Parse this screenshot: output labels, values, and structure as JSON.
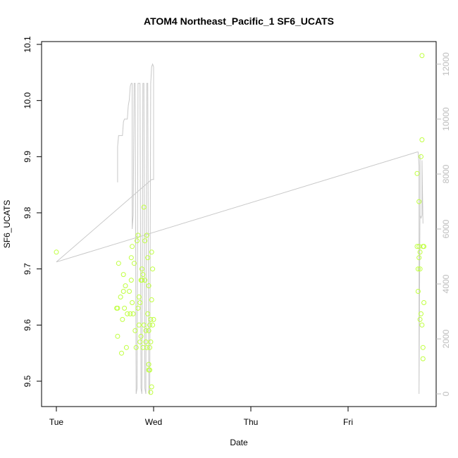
{
  "chart_data": {
    "type": "scatter",
    "title": "ATOM4 Northeast_Pacific_1 SF6_UCATS",
    "xlabel": "Date",
    "ylabel": "SF6_UCATS",
    "x_ticks": [
      "Tue",
      "Wed",
      "Thu",
      "Fri"
    ],
    "x_range_days": [
      0,
      3.88
    ],
    "ylim": [
      9.485,
      10.1
    ],
    "y_ticks": [
      "9.5",
      "9.6",
      "9.7",
      "9.8",
      "9.9",
      "10.0",
      "10.1"
    ],
    "y_tick_values": [
      9.5,
      9.6,
      9.7,
      9.8,
      9.9,
      10.0,
      10.1
    ],
    "y2_ticks": [
      "0",
      "2000",
      "4000",
      "6000",
      "8000",
      "10000",
      "12000"
    ],
    "y2_tick_values": [
      0,
      2000,
      4000,
      6000,
      8000,
      10000,
      12000
    ],
    "y2lim": [
      -200,
      12800
    ],
    "grid": false,
    "colors": {
      "points": "#bfff3f",
      "altitude_line": "#c8c8c8",
      "axis": "#000000",
      "right_axis": "#bdbdbd"
    },
    "series": [
      {
        "type": "scatter",
        "points": [
          [
            0.0,
            9.73
          ],
          [
            0.62,
            9.63
          ],
          [
            0.63,
            9.58
          ],
          [
            0.63,
            9.63
          ],
          [
            0.64,
            9.71
          ],
          [
            0.66,
            9.65
          ],
          [
            0.67,
            9.55
          ],
          [
            0.68,
            9.61
          ],
          [
            0.69,
            9.66
          ],
          [
            0.69,
            9.69
          ],
          [
            0.7,
            9.63
          ],
          [
            0.71,
            9.67
          ],
          [
            0.72,
            9.56
          ],
          [
            0.73,
            9.62
          ],
          [
            0.75,
            9.66
          ],
          [
            0.76,
            9.62
          ],
          [
            0.77,
            9.72
          ],
          [
            0.77,
            9.68
          ],
          [
            0.78,
            9.64
          ],
          [
            0.78,
            9.74
          ],
          [
            0.79,
            9.62
          ],
          [
            0.8,
            9.71
          ],
          [
            0.81,
            9.59
          ],
          [
            0.82,
            9.56
          ],
          [
            0.83,
            9.75
          ],
          [
            0.84,
            9.63
          ],
          [
            0.84,
            9.76
          ],
          [
            0.85,
            9.65
          ],
          [
            0.85,
            9.6
          ],
          [
            0.86,
            9.57
          ],
          [
            0.86,
            9.64
          ],
          [
            0.87,
            9.68
          ],
          [
            0.87,
            9.58
          ],
          [
            0.88,
            9.68
          ],
          [
            0.88,
            9.7
          ],
          [
            0.89,
            9.56
          ],
          [
            0.89,
            9.69
          ],
          [
            0.9,
            9.81
          ],
          [
            0.9,
            9.6
          ],
          [
            0.91,
            9.75
          ],
          [
            0.91,
            9.68
          ],
          [
            0.92,
            9.59
          ],
          [
            0.92,
            9.57
          ],
          [
            0.93,
            9.76
          ],
          [
            0.93,
            9.56
          ],
          [
            0.94,
            9.62
          ],
          [
            0.94,
            9.72
          ],
          [
            0.95,
            9.53
          ],
          [
            0.95,
            9.52
          ],
          [
            0.95,
            9.59
          ],
          [
            0.95,
            9.67
          ],
          [
            0.96,
            9.6
          ],
          [
            0.96,
            9.52
          ],
          [
            0.96,
            9.56
          ],
          [
            0.97,
            9.57
          ],
          [
            0.97,
            9.61
          ],
          [
            0.97,
            9.48
          ],
          [
            0.98,
            9.645
          ],
          [
            0.98,
            9.49
          ],
          [
            0.98,
            9.73
          ],
          [
            0.99,
            9.6
          ],
          [
            0.99,
            9.7
          ],
          [
            1.0,
            9.61
          ],
          [
            3.71,
            9.87
          ],
          [
            3.71,
            9.74
          ],
          [
            3.72,
            9.7
          ],
          [
            3.72,
            9.66
          ],
          [
            3.73,
            9.82
          ],
          [
            3.73,
            9.74
          ],
          [
            3.73,
            9.72
          ],
          [
            3.74,
            9.61
          ],
          [
            3.74,
            9.73
          ],
          [
            3.74,
            9.7
          ],
          [
            3.75,
            9.62
          ],
          [
            3.75,
            9.9
          ],
          [
            3.76,
            10.08
          ],
          [
            3.76,
            9.6
          ],
          [
            3.76,
            9.93
          ],
          [
            3.77,
            9.56
          ],
          [
            3.77,
            9.74
          ],
          [
            3.77,
            9.54
          ],
          [
            3.78,
            9.74
          ],
          [
            3.78,
            9.64
          ]
        ]
      },
      {
        "type": "line",
        "axis": "right",
        "name": "",
        "x": [
          0.63,
          0.63,
          0.64,
          0.68,
          0.69,
          0.7,
          0.73,
          0.74,
          0.75,
          0.76,
          0.77,
          0.78,
          0.78,
          0.79,
          0.8,
          0.81,
          0.82,
          0.83,
          0.84,
          0.86,
          0.87,
          0.88,
          0.89,
          0.9,
          0.91,
          0.92,
          0.93,
          0.94,
          0.95,
          0.96,
          0.97,
          0.98,
          0.99,
          1.0,
          1.0,
          0.98,
          0.0,
          3.71,
          3.72,
          3.73,
          3.73,
          3.74,
          3.74,
          3.74,
          3.75,
          3.76,
          3.76,
          3.77
        ],
        "y": [
          7700,
          9000,
          9400,
          9400,
          9900,
          10000,
          10000,
          10500,
          10700,
          11200,
          11300,
          11300,
          6000,
          6500,
          11300,
          11300,
          0,
          200,
          11300,
          11300,
          200,
          0,
          11300,
          11300,
          200,
          0,
          11300,
          11300,
          100,
          0,
          11300,
          11900,
          12000,
          11900,
          7800,
          7800,
          4800,
          8800,
          8800,
          8300,
          0,
          7000,
          8700,
          6500,
          6400,
          6500,
          8500,
          6200
        ]
      }
    ]
  }
}
